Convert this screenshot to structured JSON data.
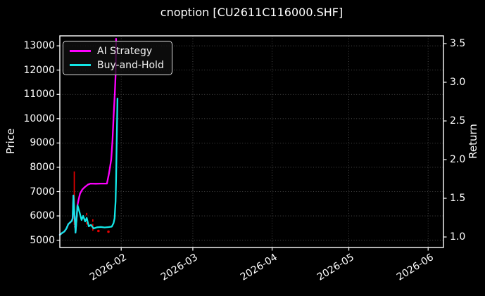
{
  "colors": {
    "background": "#000000",
    "frame": "#ffffff",
    "text": "#ffffff",
    "grid": "#5a5a5a",
    "ai_strategy": "#ff00ff",
    "buy_and_hold": "#12e6e6",
    "signal_red": "#e60000"
  },
  "chart_data": {
    "type": "line",
    "title": "cnoption [CU2611C116000.SHF]",
    "xlabel": "",
    "ylabel_left": "Price",
    "ylabel_right": "Return",
    "grid": true,
    "legend_position": "upper left",
    "x_unit_note": "days from first plotted point (early Jan 2026); axis labeled by month",
    "xlim_days": [
      0,
      150
    ],
    "x_ticks": [
      {
        "day": 24,
        "label": "2026-02"
      },
      {
        "day": 52,
        "label": "2026-03"
      },
      {
        "day": 83,
        "label": "2026-04"
      },
      {
        "day": 113,
        "label": "2026-05"
      },
      {
        "day": 144,
        "label": "2026-06"
      }
    ],
    "ylim_left": [
      4700,
      13410
    ],
    "yticks_left": [
      5000,
      6000,
      7000,
      8000,
      9000,
      10000,
      11000,
      12000,
      13000
    ],
    "ylim_right": [
      0.864,
      3.6
    ],
    "yticks_right": [
      {
        "value": 1.0,
        "label": "1.0"
      },
      {
        "value": 1.5,
        "label": "1.5"
      },
      {
        "value": 2.0,
        "label": "2.0"
      },
      {
        "value": 2.5,
        "label": "2.5"
      },
      {
        "value": 3.0,
        "label": "3.0"
      },
      {
        "value": 3.5,
        "label": "3.5"
      }
    ],
    "series": [
      {
        "name": "AI Strategy",
        "color_key": "ai_strategy",
        "points": [
          [
            0,
            5220
          ],
          [
            0.9,
            5300
          ],
          [
            1.8,
            5360
          ],
          [
            2.6,
            5480
          ],
          [
            3.3,
            5660
          ],
          [
            4.1,
            5740
          ],
          [
            4.7,
            5800
          ],
          [
            5.0,
            5900
          ],
          [
            5.3,
            6840
          ],
          [
            5.7,
            6100
          ],
          [
            6.0,
            5640
          ],
          [
            6.15,
            5310
          ],
          [
            6.5,
            5800
          ],
          [
            6.9,
            6440
          ],
          [
            7.3,
            6650
          ],
          [
            7.9,
            6920
          ],
          [
            8.8,
            7090
          ],
          [
            9.9,
            7200
          ],
          [
            11.0,
            7290
          ],
          [
            12.0,
            7330
          ],
          [
            14.0,
            7325
          ],
          [
            16.0,
            7330
          ],
          [
            18.4,
            7330
          ],
          [
            19.2,
            7740
          ],
          [
            20.1,
            8320
          ],
          [
            20.6,
            9100
          ],
          [
            21.0,
            10050
          ],
          [
            21.5,
            11040
          ],
          [
            21.8,
            11790
          ],
          [
            22.0,
            13290
          ]
        ]
      },
      {
        "name": "Buy-and-Hold",
        "color_key": "buy_and_hold",
        "points": [
          [
            0,
            5220
          ],
          [
            0.9,
            5300
          ],
          [
            1.8,
            5360
          ],
          [
            2.6,
            5480
          ],
          [
            3.3,
            5660
          ],
          [
            4.1,
            5740
          ],
          [
            4.7,
            5800
          ],
          [
            5.0,
            5900
          ],
          [
            5.3,
            6840
          ],
          [
            5.7,
            6100
          ],
          [
            6.0,
            5640
          ],
          [
            6.15,
            5310
          ],
          [
            6.5,
            5800
          ],
          [
            6.9,
            6440
          ],
          [
            7.7,
            6150
          ],
          [
            8.5,
            5830
          ],
          [
            9.1,
            6000
          ],
          [
            9.9,
            5770
          ],
          [
            10.5,
            5915
          ],
          [
            11.3,
            5570
          ],
          [
            12.2,
            5630
          ],
          [
            13.2,
            5480
          ],
          [
            14.5,
            5530
          ],
          [
            16.0,
            5545
          ],
          [
            17.5,
            5525
          ],
          [
            19.0,
            5540
          ],
          [
            20.3,
            5560
          ],
          [
            21.0,
            5700
          ],
          [
            21.4,
            5900
          ],
          [
            21.8,
            6600
          ],
          [
            22.0,
            7500
          ],
          [
            22.2,
            8900
          ],
          [
            22.4,
            10000
          ],
          [
            22.55,
            10830
          ]
        ]
      }
    ],
    "signals": {
      "color_key": "signal_red",
      "segments": [
        {
          "day": 5.65,
          "price_from": 7830,
          "price_to": 5630,
          "dashed": false
        },
        {
          "day": 6.05,
          "price_from": 5830,
          "price_to": 5650,
          "dashed": false
        },
        {
          "day": 10.5,
          "price_from": 6120,
          "price_to": 5540,
          "dashed": true
        },
        {
          "day": 12.9,
          "price_from": 5860,
          "price_to": 5390,
          "dashed": true
        }
      ],
      "dots": [
        {
          "day": 6.0,
          "price": 5560
        },
        {
          "day": 15.1,
          "price": 5380
        },
        {
          "day": 19.0,
          "price": 5350
        }
      ]
    }
  }
}
